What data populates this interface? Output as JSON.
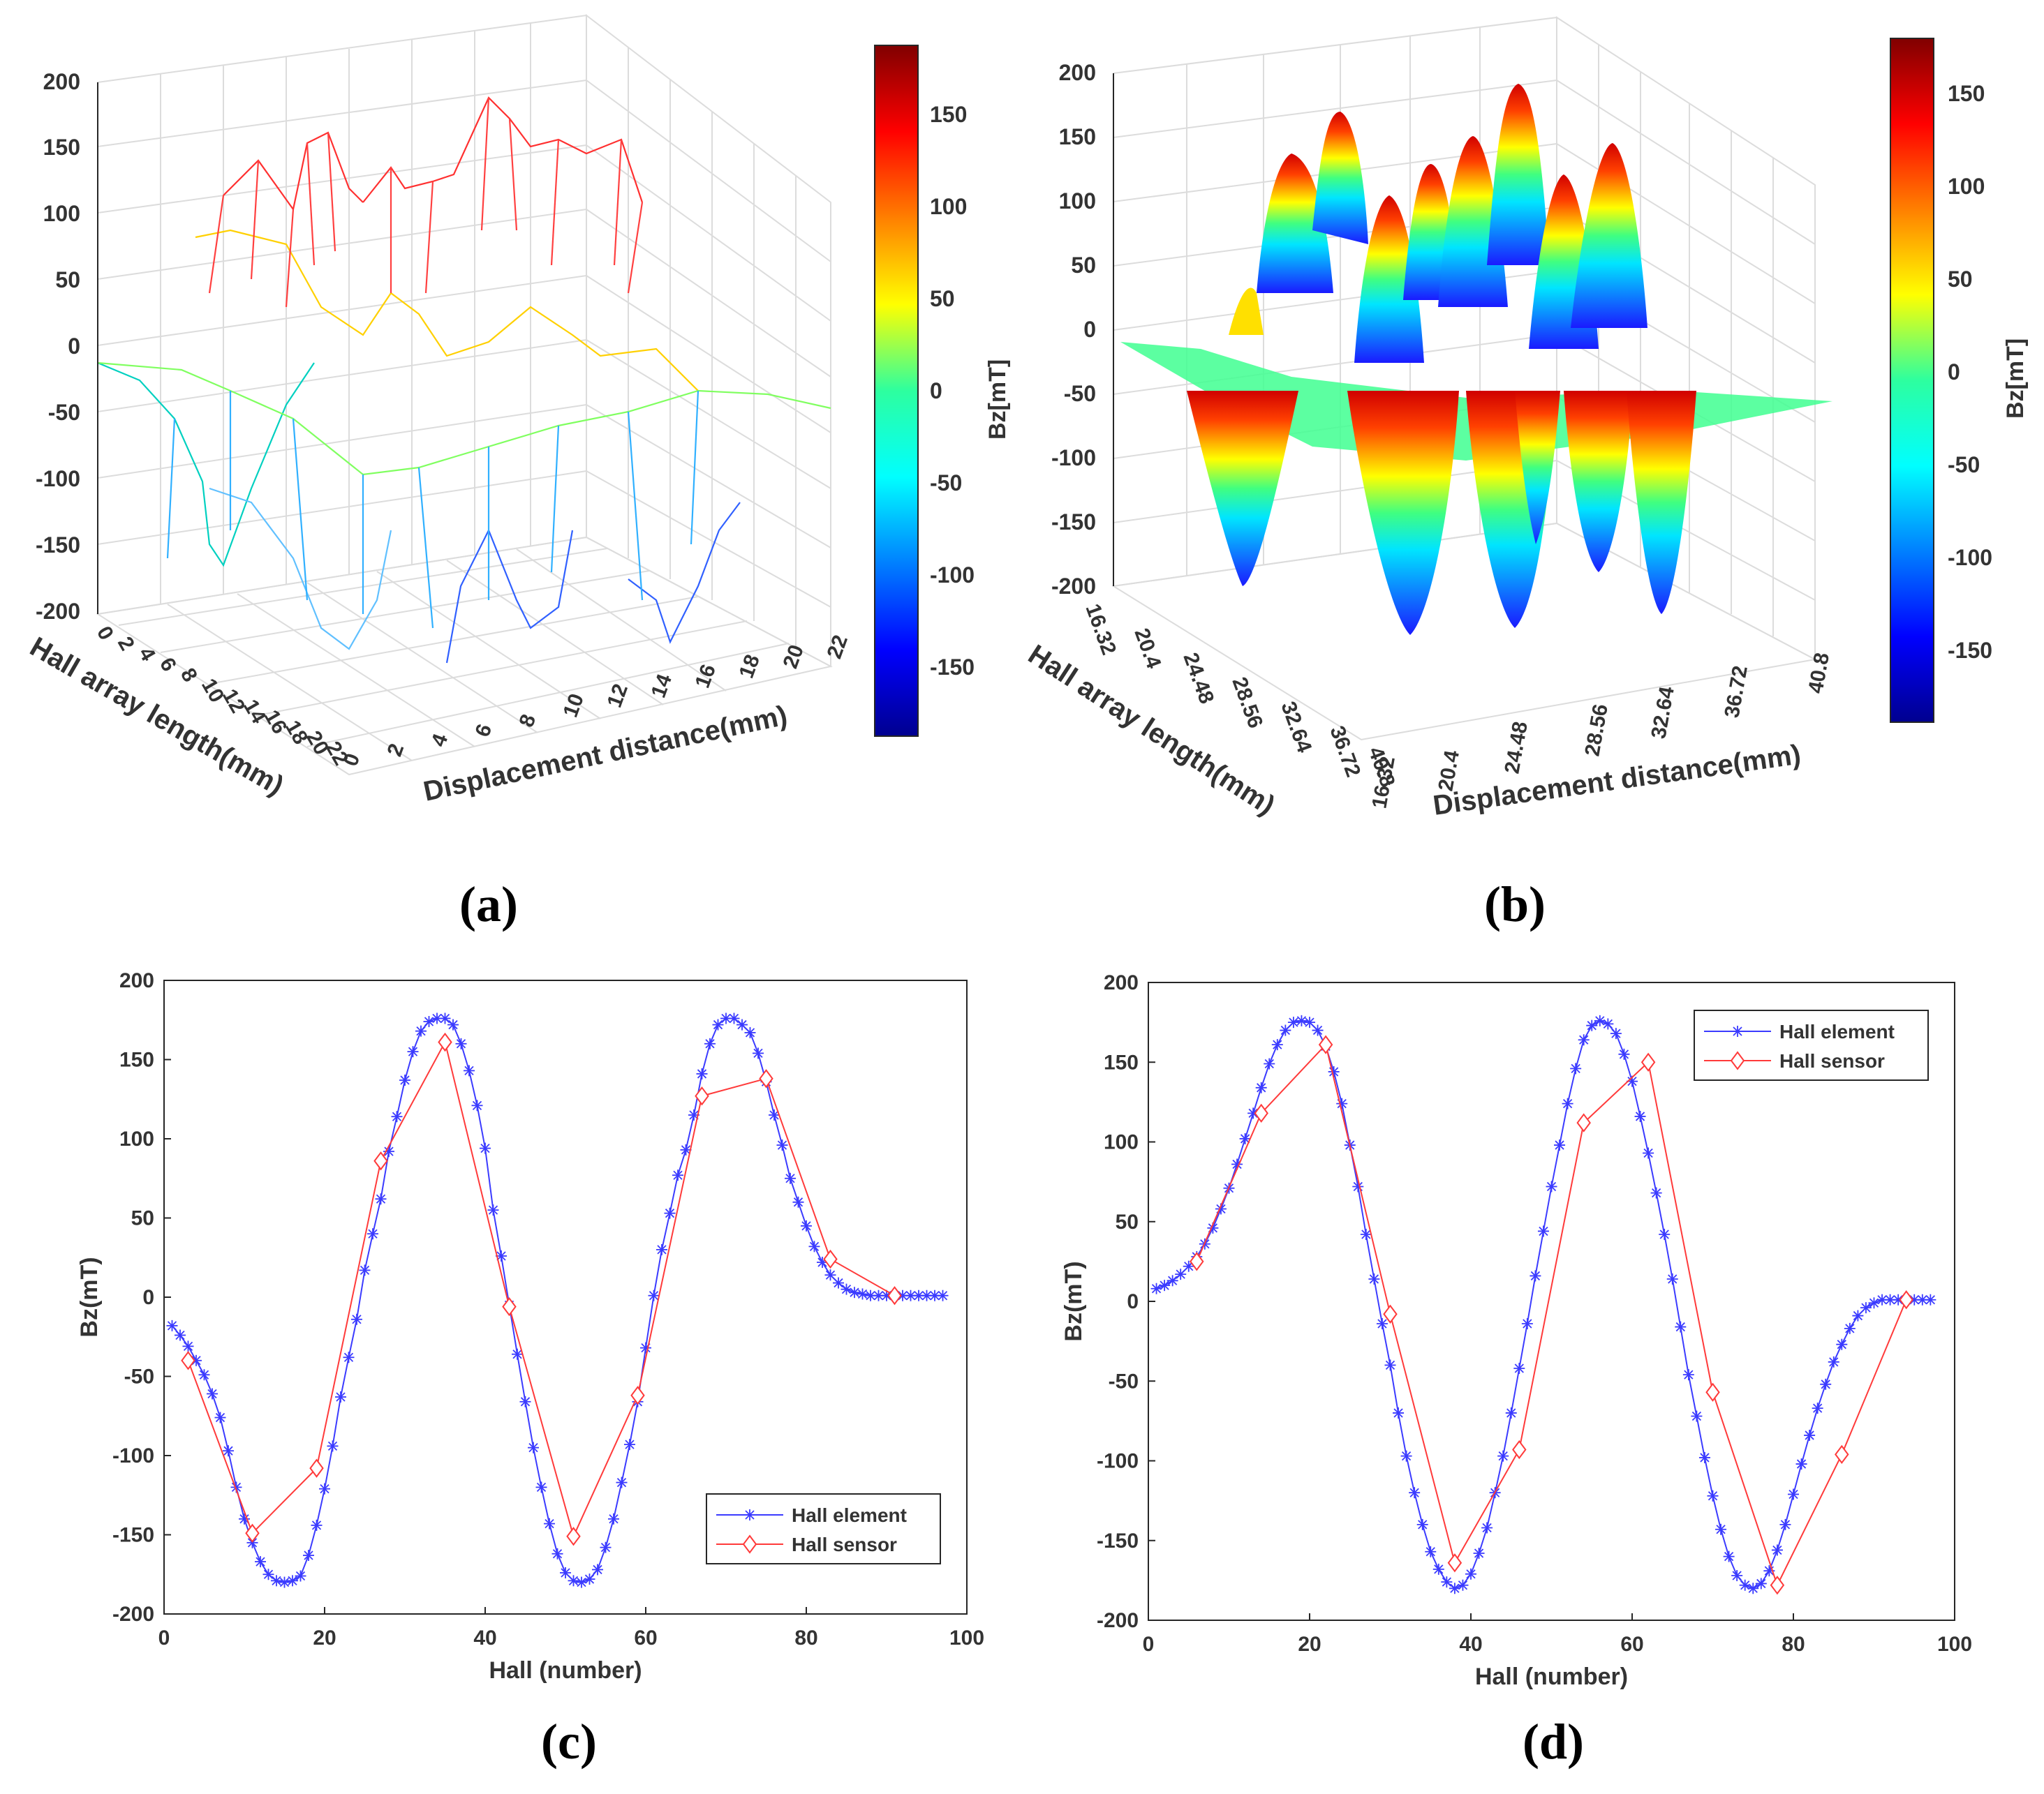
{
  "panels": {
    "a": {
      "label": "(a)"
    },
    "b": {
      "label": "(b)"
    },
    "c": {
      "label": "(c)"
    },
    "d": {
      "label": "(d)"
    }
  },
  "colors": {
    "hall_element": "#3b3bff",
    "hall_sensor": "#ff3a3a",
    "grid": "#dcdcdc",
    "axis": "#262626"
  },
  "chart_data": [
    {
      "id": "a",
      "type": "surface-wireframe",
      "zlim": [
        -200,
        200
      ],
      "zticks": [
        "200",
        "150",
        "100",
        "50",
        "0",
        "-50",
        "-100",
        "-150",
        "-200"
      ],
      "xticks": [
        "0",
        "2",
        "4",
        "6",
        "8",
        "10",
        "12",
        "14",
        "16",
        "18",
        "20",
        "22"
      ],
      "yticks": [
        "0",
        "2",
        "4",
        "6",
        "8",
        "10",
        "12",
        "14",
        "16",
        "18",
        "20",
        "22"
      ],
      "xlabel": "Displacement distance(mm)",
      "ylabel": "Hall array length(mm)",
      "colorbar": {
        "label": "Bz[mT]",
        "ticks": [
          "150",
          "100",
          "50",
          "0",
          "-50",
          "-100",
          "-150"
        ],
        "range": [
          -180,
          180
        ]
      }
    },
    {
      "id": "b",
      "type": "surface",
      "zlim": [
        -200,
        200
      ],
      "zticks": [
        "200",
        "150",
        "100",
        "50",
        "0",
        "-50",
        "-100",
        "-150",
        "-200"
      ],
      "xticks": [
        "16.32",
        "20.4",
        "24.48",
        "28.56",
        "32.64",
        "36.72",
        "40.8"
      ],
      "yticks": [
        "16.32",
        "20.4",
        "24.48",
        "28.56",
        "32.64",
        "36.72",
        "40.8"
      ],
      "xlabel": "Displacement distance(mm)",
      "ylabel": "Hall array length(mm)",
      "colorbar": {
        "label": "Bz[mT]",
        "ticks": [
          "150",
          "100",
          "50",
          "0",
          "-50",
          "-100",
          "-150"
        ],
        "range": [
          -180,
          180
        ]
      }
    },
    {
      "id": "c",
      "type": "line",
      "xlabel": "Hall (number)",
      "ylabel": "Bz(mT)",
      "xlim": [
        0,
        100
      ],
      "ylim": [
        -200,
        200
      ],
      "xticks": [
        0,
        20,
        40,
        60,
        80,
        100
      ],
      "yticks": [
        -200,
        -150,
        -100,
        -50,
        0,
        50,
        100,
        150,
        200
      ],
      "legend": {
        "position": "bottom-right",
        "entries": [
          "Hall element",
          "Hall sensor"
        ]
      },
      "series": [
        {
          "name": "Hall element",
          "marker": "asterisk",
          "x": [
            1,
            2,
            3,
            4,
            5,
            6,
            7,
            8,
            9,
            10,
            11,
            12,
            13,
            14,
            15,
            16,
            17,
            18,
            19,
            20,
            21,
            22,
            23,
            24,
            25,
            26,
            27,
            28,
            29,
            30,
            31,
            32,
            33,
            34,
            35,
            36,
            37,
            38,
            39,
            40,
            41,
            42,
            43,
            44,
            45,
            46,
            47,
            48,
            49,
            50,
            51,
            52,
            53,
            54,
            55,
            56,
            57,
            58,
            59,
            60,
            61,
            62,
            63,
            64,
            65,
            66,
            67,
            68,
            69,
            70,
            71,
            72,
            73,
            74,
            75,
            76,
            77,
            78,
            79,
            80,
            81,
            82,
            83,
            84,
            85,
            86,
            87,
            88,
            89,
            90,
            91,
            92,
            93,
            94,
            95,
            96,
            97
          ],
          "y": [
            -18,
            -24,
            -31,
            -40,
            -49,
            -61,
            -76,
            -97,
            -120,
            -140,
            -155,
            -167,
            -175,
            -179,
            -180,
            -179,
            -176,
            -163,
            -144,
            -121,
            -94,
            -63,
            -38,
            -14,
            17,
            40,
            62,
            92,
            114,
            137,
            155,
            168,
            174,
            176,
            176,
            172,
            160,
            143,
            121,
            94,
            55,
            26,
            -5,
            -36,
            -66,
            -95,
            -120,
            -143,
            -162,
            -174,
            -179,
            -180,
            -178,
            -172,
            -158,
            -140,
            -117,
            -93,
            -66,
            -32,
            1,
            30,
            53,
            77,
            93,
            115,
            141,
            160,
            172,
            176,
            176,
            172,
            167,
            154,
            136,
            115,
            96,
            75,
            60,
            45,
            32,
            22,
            14,
            9,
            5,
            3,
            2,
            1,
            1,
            1,
            1,
            1,
            1,
            1,
            1,
            1,
            1
          ]
        },
        {
          "name": "Hall sensor",
          "marker": "diamond",
          "x": [
            3,
            11,
            19,
            27,
            35,
            43,
            51,
            59,
            67,
            75,
            83,
            91
          ],
          "y": [
            -40,
            -149,
            -108,
            86,
            161,
            -6,
            -151,
            -62,
            127,
            138,
            24,
            1
          ]
        }
      ]
    },
    {
      "id": "d",
      "type": "line",
      "xlabel": "Hall (number)",
      "ylabel": "Bz(mT)",
      "xlim": [
        0,
        100
      ],
      "ylim": [
        -200,
        200
      ],
      "xticks": [
        0,
        20,
        40,
        60,
        80,
        100
      ],
      "yticks": [
        -200,
        -150,
        -100,
        -50,
        0,
        50,
        100,
        150,
        200
      ],
      "legend": {
        "position": "top-right",
        "entries": [
          "Hall element",
          "Hall sensor"
        ]
      },
      "series": [
        {
          "name": "Hall element",
          "marker": "asterisk",
          "x": [
            1,
            2,
            3,
            4,
            5,
            6,
            7,
            8,
            9,
            10,
            11,
            12,
            13,
            14,
            15,
            16,
            17,
            18,
            19,
            20,
            21,
            22,
            23,
            24,
            25,
            26,
            27,
            28,
            29,
            30,
            31,
            32,
            33,
            34,
            35,
            36,
            37,
            38,
            39,
            40,
            41,
            42,
            43,
            44,
            45,
            46,
            47,
            48,
            49,
            50,
            51,
            52,
            53,
            54,
            55,
            56,
            57,
            58,
            59,
            60,
            61,
            62,
            63,
            64,
            65,
            66,
            67,
            68,
            69,
            70,
            71,
            72,
            73,
            74,
            75,
            76,
            77,
            78,
            79,
            80,
            81,
            82,
            83,
            84,
            85,
            86,
            87,
            88,
            89,
            90,
            91,
            92,
            93,
            94,
            95,
            96,
            97
          ],
          "y": [
            8,
            10,
            13,
            17,
            22,
            28,
            36,
            46,
            58,
            71,
            86,
            102,
            118,
            134,
            149,
            161,
            170,
            175,
            176,
            175,
            170,
            160,
            144,
            124,
            98,
            72,
            42,
            14,
            -14,
            -40,
            -70,
            -97,
            -120,
            -140,
            -157,
            -168,
            -176,
            -180,
            -178,
            -171,
            -158,
            -142,
            -120,
            -97,
            -70,
            -42,
            -14,
            16,
            44,
            72,
            98,
            124,
            146,
            164,
            173,
            176,
            174,
            168,
            155,
            138,
            116,
            93,
            68,
            42,
            14,
            -16,
            -46,
            -72,
            -98,
            -122,
            -143,
            -160,
            -172,
            -178,
            -180,
            -177,
            -169,
            -156,
            -140,
            -121,
            -102,
            -84,
            -67,
            -52,
            -38,
            -27,
            -17,
            -9,
            -4,
            -1,
            1,
            1,
            1,
            1,
            1,
            1,
            1
          ]
        },
        {
          "name": "Hall sensor",
          "marker": "diamond",
          "x": [
            6,
            14,
            22,
            30,
            38,
            46,
            54,
            62,
            70,
            78,
            86,
            94
          ],
          "y": [
            25,
            118,
            161,
            -8,
            -164,
            -93,
            112,
            150,
            -57,
            -178,
            -96,
            1
          ]
        }
      ]
    }
  ]
}
